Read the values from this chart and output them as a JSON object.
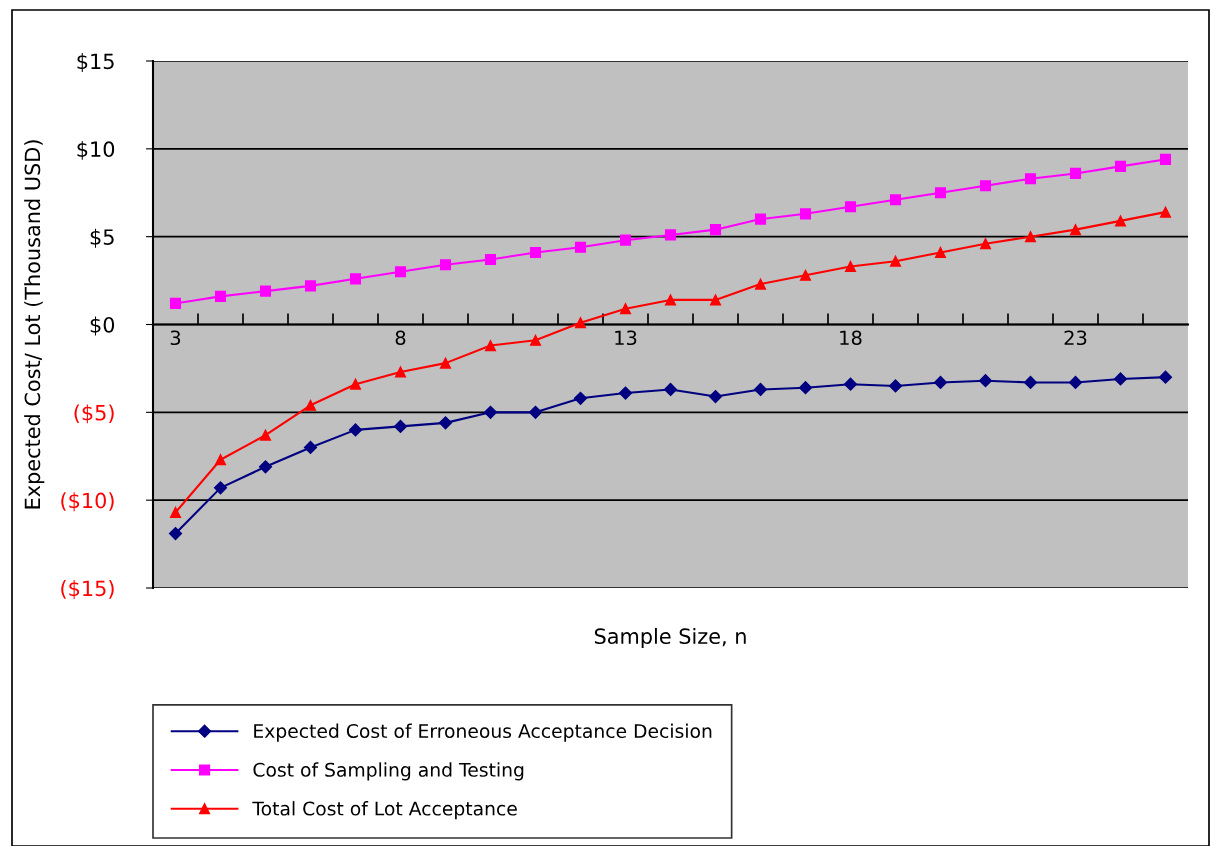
{
  "chart_data": {
    "type": "line",
    "xlabel": "Sample Size, n",
    "ylabel": "Expected Cost/ Lot (Thousand USD)",
    "categories": [
      "3",
      null,
      null,
      null,
      null,
      "8",
      null,
      null,
      null,
      null,
      "13",
      null,
      null,
      null,
      null,
      "18",
      null,
      null,
      null,
      null,
      "23",
      null,
      null
    ],
    "series": [
      {
        "name": "Expected Cost of Erroneous Acceptance Decision",
        "color": "#000080",
        "marker": "diamond",
        "values": [
          -11.9,
          -9.3,
          -8.1,
          -7.0,
          -6.0,
          -5.8,
          -5.6,
          -5.0,
          -5.0,
          -4.2,
          -3.9,
          -3.7,
          -4.1,
          -3.7,
          -3.6,
          -3.4,
          -3.5,
          -3.3,
          -3.2,
          -3.3,
          -3.3,
          -3.1,
          -3.0
        ]
      },
      {
        "name": "Cost of Sampling and Testing",
        "color": "#ff00ff",
        "marker": "square",
        "values": [
          1.2,
          1.6,
          1.9,
          2.2,
          2.6,
          3.0,
          3.4,
          3.7,
          4.1,
          4.4,
          4.8,
          5.1,
          5.4,
          6.0,
          6.3,
          6.7,
          7.1,
          7.5,
          7.9,
          8.3,
          8.6,
          9.0,
          9.4
        ]
      },
      {
        "name": "Total Cost of Lot Acceptance",
        "color": "#ff0000",
        "marker": "triangle",
        "values": [
          -10.7,
          -7.7,
          -6.3,
          -4.6,
          -3.4,
          -2.7,
          -2.2,
          -1.2,
          -0.9,
          0.1,
          0.9,
          1.4,
          1.4,
          2.3,
          2.8,
          3.3,
          3.6,
          4.1,
          4.6,
          5.0,
          5.4,
          5.9,
          6.4
        ]
      }
    ],
    "ylim": [
      -15,
      15
    ],
    "yticks": [
      {
        "value": -15,
        "label": "($15)"
      },
      {
        "value": -10,
        "label": "($10)"
      },
      {
        "value": -5,
        "label": "($5)"
      },
      {
        "value": 0,
        "label": "$0"
      },
      {
        "value": 5,
        "label": "$5"
      },
      {
        "value": 10,
        "label": "$10"
      },
      {
        "value": 15,
        "label": "$15"
      }
    ],
    "grid": "y",
    "legend": "bottom",
    "line_style": "solid"
  }
}
